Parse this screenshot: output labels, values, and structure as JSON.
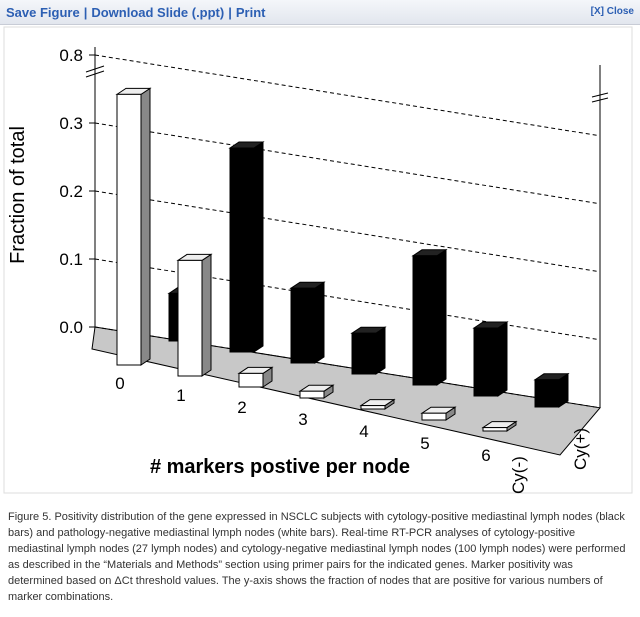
{
  "toolbar": {
    "links": [
      "Save Figure",
      "Download Slide (.ppt)",
      "Print"
    ],
    "close": "[X] Close"
  },
  "chart_data": {
    "type": "bar3d",
    "xlabel": "# markers postive per node",
    "ylabel": "Fraction of total",
    "categories": [
      "0",
      "1",
      "2",
      "3",
      "4",
      "5",
      "6"
    ],
    "series": [
      {
        "name": "Cy(-)",
        "color": "#ffffff",
        "values": [
          0.79,
          0.17,
          0.02,
          0.01,
          0.005,
          0.01,
          0.005
        ]
      },
      {
        "name": "Cy(+)",
        "color": "#000000",
        "values": [
          0.07,
          0.3,
          0.11,
          0.06,
          0.19,
          0.1,
          0.04
        ]
      }
    ],
    "ylim": [
      0,
      0.8
    ],
    "yticks": [
      {
        "value": 0,
        "label": "0.0"
      },
      0.1,
      0.2,
      0.3,
      0.8
    ],
    "grid": true
  },
  "caption": "Figure 5. Positivity distribution of the gene expressed in NSCLC subjects with cytology-positive mediastinal lymph nodes (black bars) and pathology-negative mediastinal lymph nodes (white bars). Real-time RT-PCR analyses of cytology-positive mediastinal lymph nodes (27 lymph nodes) and cytology-negative mediastinal lymph nodes (100 lymph nodes) were performed as described in the “Materials and Methods” section using primer pairs for the indicated genes. Marker positivity was determined based on ΔCt threshold values. The y-axis shows the fraction of nodes that are positive for various numbers of marker combinations."
}
